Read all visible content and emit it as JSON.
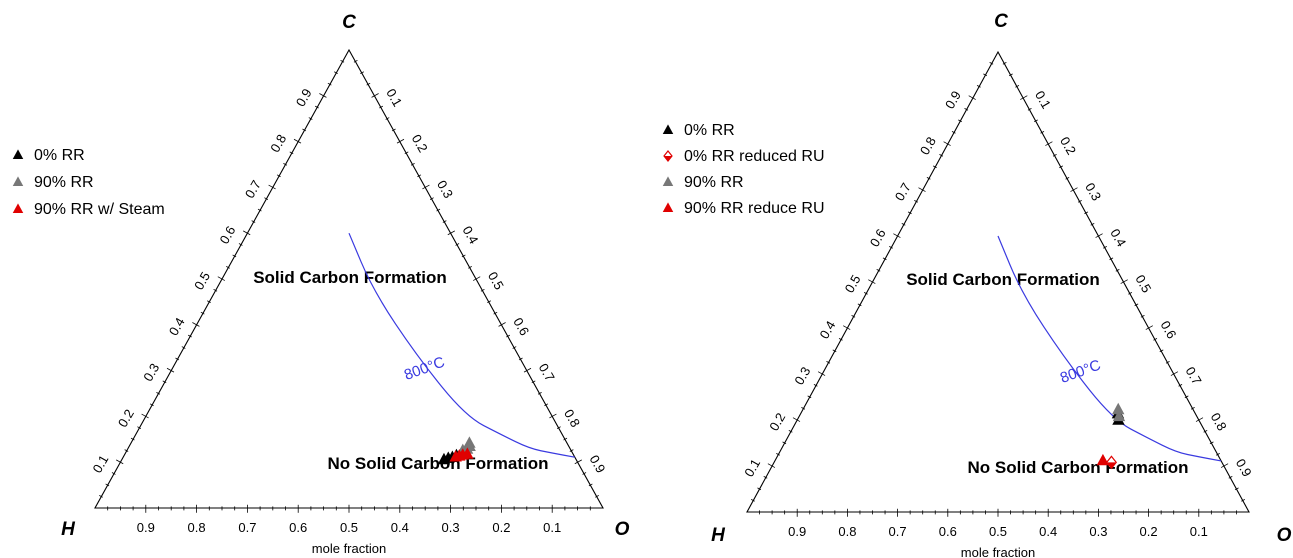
{
  "chart_data": [
    {
      "type": "scatter",
      "subtype": "ternary",
      "vertices": {
        "top": "C",
        "left": "H",
        "right": "O"
      },
      "region_labels": {
        "upper": "Solid Carbon Formation",
        "lower": "No Solid Carbon Formation"
      },
      "x_title": "mole fraction",
      "tick_labels": [
        "0.1",
        "0.2",
        "0.3",
        "0.4",
        "0.5",
        "0.6",
        "0.7",
        "0.8",
        "0.9"
      ],
      "boundary": {
        "label": "800°C",
        "color": "#3a3ae0",
        "points": [
          [
            0.111,
            0.889
          ],
          [
            0.12,
            0.84
          ],
          [
            0.13,
            0.79
          ],
          [
            0.16,
            0.72
          ],
          [
            0.2,
            0.63
          ],
          [
            0.33,
            0.47
          ],
          [
            0.475,
            0.31
          ],
          [
            0.6,
            0.2
          ]
        ]
      },
      "legend": {
        "position": "left"
      },
      "series": [
        {
          "name": "0% RR",
          "color": "#000000",
          "marker": "triangle",
          "points": [
            [
              0.117,
              0.664
            ],
            [
              0.115,
              0.654
            ],
            [
              0.111,
              0.648
            ],
            [
              0.109,
              0.641
            ],
            [
              0.106,
              0.634
            ]
          ]
        },
        {
          "name": "90% RR",
          "color": "#777777",
          "marker": "triangle",
          "points": [
            [
              0.142,
              0.666
            ],
            [
              0.135,
              0.67
            ],
            [
              0.129,
              0.668
            ],
            [
              0.126,
              0.661
            ]
          ]
        },
        {
          "name": "90% RR w/ Steam",
          "color": "#e00000",
          "marker": "triangle",
          "points": [
            [
              0.118,
              0.674
            ],
            [
              0.116,
              0.666
            ],
            [
              0.114,
              0.66
            ],
            [
              0.112,
              0.654
            ]
          ]
        }
      ]
    },
    {
      "type": "scatter",
      "subtype": "ternary",
      "vertices": {
        "top": "C",
        "left": "H",
        "right": "O"
      },
      "region_labels": {
        "upper": "Solid Carbon Formation",
        "lower": "No Solid Carbon Formation"
      },
      "x_title": "mole fraction",
      "tick_labels": [
        "0.1",
        "0.2",
        "0.3",
        "0.4",
        "0.5",
        "0.6",
        "0.7",
        "0.8",
        "0.9"
      ],
      "boundary": {
        "label": "800°C",
        "color": "#3a3ae0",
        "points": [
          [
            0.111,
            0.889
          ],
          [
            0.12,
            0.84
          ],
          [
            0.13,
            0.79
          ],
          [
            0.16,
            0.72
          ],
          [
            0.2,
            0.63
          ],
          [
            0.33,
            0.47
          ],
          [
            0.475,
            0.31
          ],
          [
            0.6,
            0.2
          ]
        ]
      },
      "legend": {
        "position": "upper-left"
      },
      "series": [
        {
          "name": "0% RR",
          "color": "#000000",
          "marker": "triangle",
          "points": [
            [
              0.2,
              0.64
            ],
            [
              0.214,
              0.632
            ]
          ]
        },
        {
          "name": "0% RR reduced RU",
          "color": "#e00000",
          "marker": "half-diamond",
          "points": [
            [
              0.108,
              0.672
            ]
          ]
        },
        {
          "name": "90% RR",
          "color": "#777777",
          "marker": "triangle",
          "points": [
            [
              0.208,
              0.637
            ],
            [
              0.223,
              0.628
            ]
          ]
        },
        {
          "name": "90% RR reduce RU",
          "color": "#e00000",
          "marker": "triangle",
          "points": [
            [
              0.112,
              0.653
            ]
          ]
        }
      ]
    }
  ]
}
